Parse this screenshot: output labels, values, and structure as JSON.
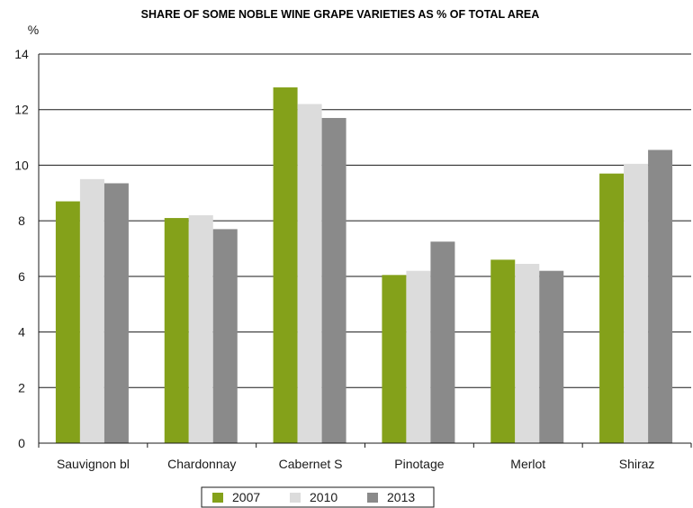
{
  "chart_data": {
    "type": "bar",
    "title": "SHARE OF SOME NOBLE WINE GRAPE VARIETIES AS % OF TOTAL AREA",
    "ylabel": "%",
    "xlabel": "",
    "ylim": [
      0,
      14
    ],
    "yticks": [
      0,
      2,
      4,
      6,
      8,
      10,
      12,
      14
    ],
    "grid": true,
    "legend_position": "bottom",
    "categories": [
      "Sauvignon bl",
      "Chardonnay",
      "Cabernet S",
      "Pinotage",
      "Merlot",
      "Shiraz"
    ],
    "series": [
      {
        "name": "2007",
        "color": "#84a11a",
        "values": [
          8.7,
          8.1,
          12.8,
          6.05,
          6.6,
          9.7
        ]
      },
      {
        "name": "2010",
        "color": "#dcdcdc",
        "values": [
          9.5,
          8.2,
          12.2,
          6.2,
          6.45,
          10.05
        ]
      },
      {
        "name": "2013",
        "color": "#8a8a8a",
        "values": [
          9.35,
          7.7,
          11.7,
          7.25,
          6.2,
          10.55
        ]
      }
    ]
  }
}
